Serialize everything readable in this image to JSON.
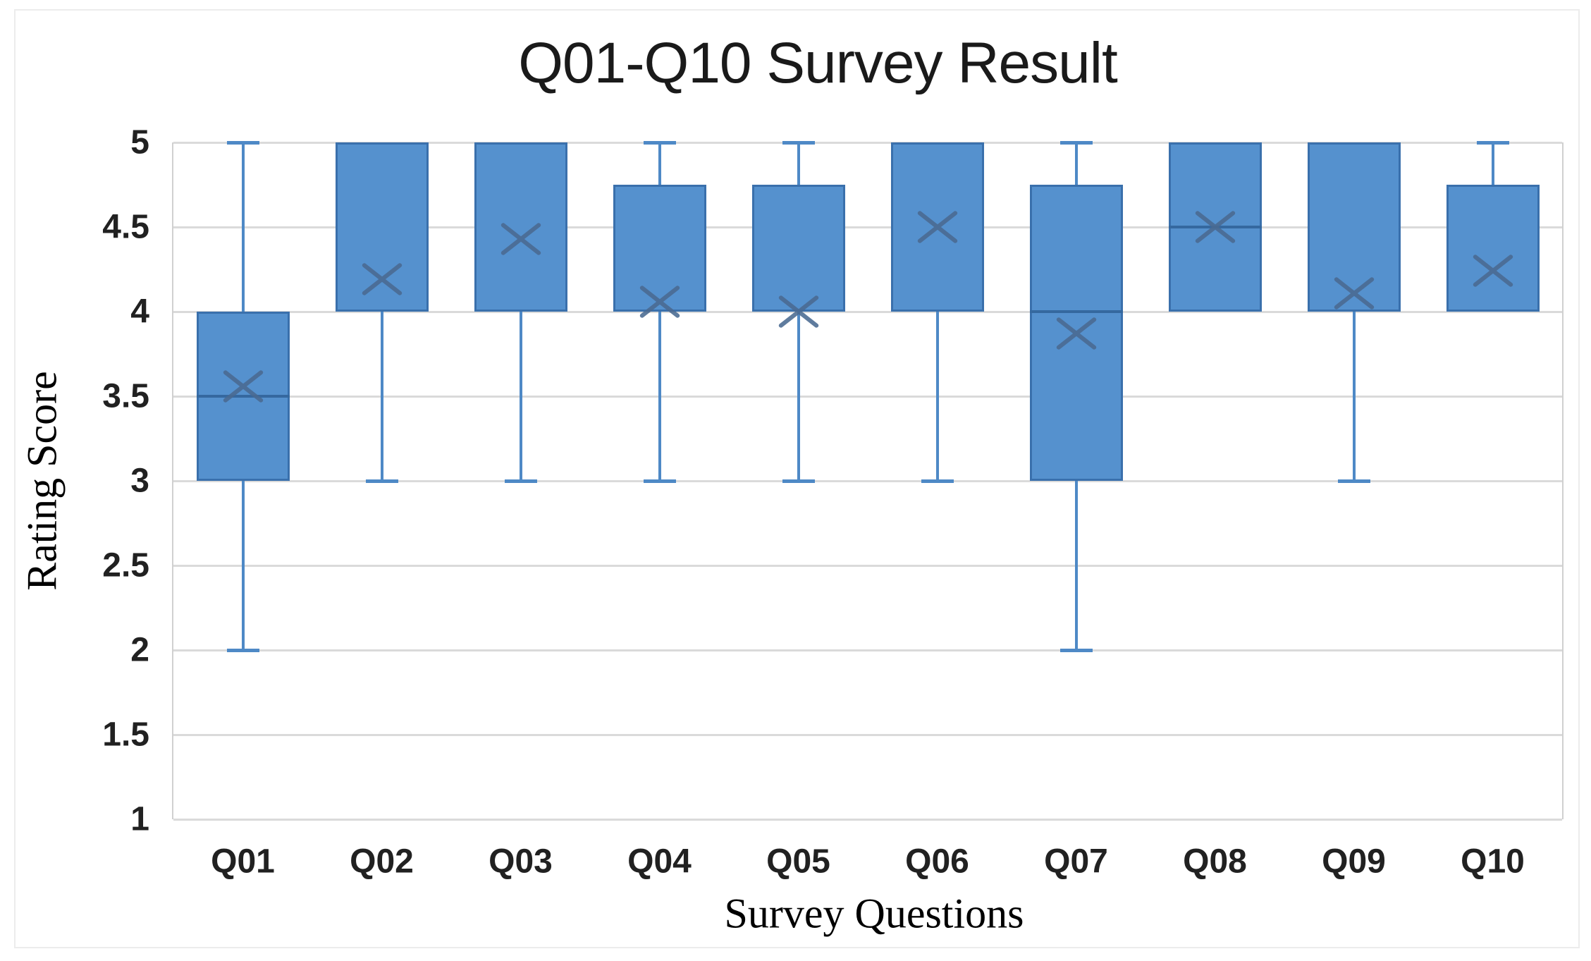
{
  "colors": {
    "box_fill": "#5591CE",
    "box_border": "#3A70AC",
    "whisker": "#4E89C6",
    "median": "#35689F",
    "mean_marker": "#4A6A91",
    "gridline": "#DADADA",
    "axis_line": "#D0D0D0",
    "tick_text": "#212121",
    "title_text": "#1A1A1A",
    "frame": "#ECECEC"
  },
  "chart_data": {
    "type": "boxplot",
    "title": "Q01-Q10 Survey Result",
    "xlabel": "Survey Questions",
    "ylabel": "Rating Score",
    "ylim": [
      1,
      5
    ],
    "ytick_step": 0.5,
    "yticks": [
      5,
      4.5,
      4,
      3.5,
      3,
      2.5,
      2,
      1.5,
      1
    ],
    "grid": true,
    "legend": "none",
    "categories": [
      "Q01",
      "Q02",
      "Q03",
      "Q04",
      "Q05",
      "Q06",
      "Q07",
      "Q08",
      "Q09",
      "Q10"
    ],
    "series": [
      {
        "name": "Q01",
        "min": 2,
        "q1": 3,
        "median": 3.5,
        "q3": 4,
        "max": 5,
        "mean": 3.56
      },
      {
        "name": "Q02",
        "min": 3,
        "q1": 4,
        "median": null,
        "q3": 5,
        "max": 5,
        "mean": 4.19
      },
      {
        "name": "Q03",
        "min": 3,
        "q1": 4,
        "median": null,
        "q3": 5,
        "max": 5,
        "mean": 4.43
      },
      {
        "name": "Q04",
        "min": 3,
        "q1": 4,
        "median": null,
        "q3": 4.75,
        "max": 5,
        "mean": 4.06
      },
      {
        "name": "Q05",
        "min": 3,
        "q1": 4,
        "median": null,
        "q3": 4.75,
        "max": 5,
        "mean": 4.0
      },
      {
        "name": "Q06",
        "min": 3,
        "q1": 4,
        "median": null,
        "q3": 5,
        "max": 5,
        "mean": 4.5
      },
      {
        "name": "Q07",
        "min": 2,
        "q1": 3,
        "median": 4,
        "q3": 4.75,
        "max": 5,
        "mean": 3.87
      },
      {
        "name": "Q08",
        "min": 4,
        "q1": 4,
        "median": 4.5,
        "q3": 5,
        "max": 5,
        "mean": 4.5
      },
      {
        "name": "Q09",
        "min": 3,
        "q1": 4,
        "median": null,
        "q3": 5,
        "max": 5,
        "mean": 4.11
      },
      {
        "name": "Q10",
        "min": 4,
        "q1": 4,
        "median": null,
        "q3": 4.75,
        "max": 5,
        "mean": 4.24
      }
    ]
  }
}
